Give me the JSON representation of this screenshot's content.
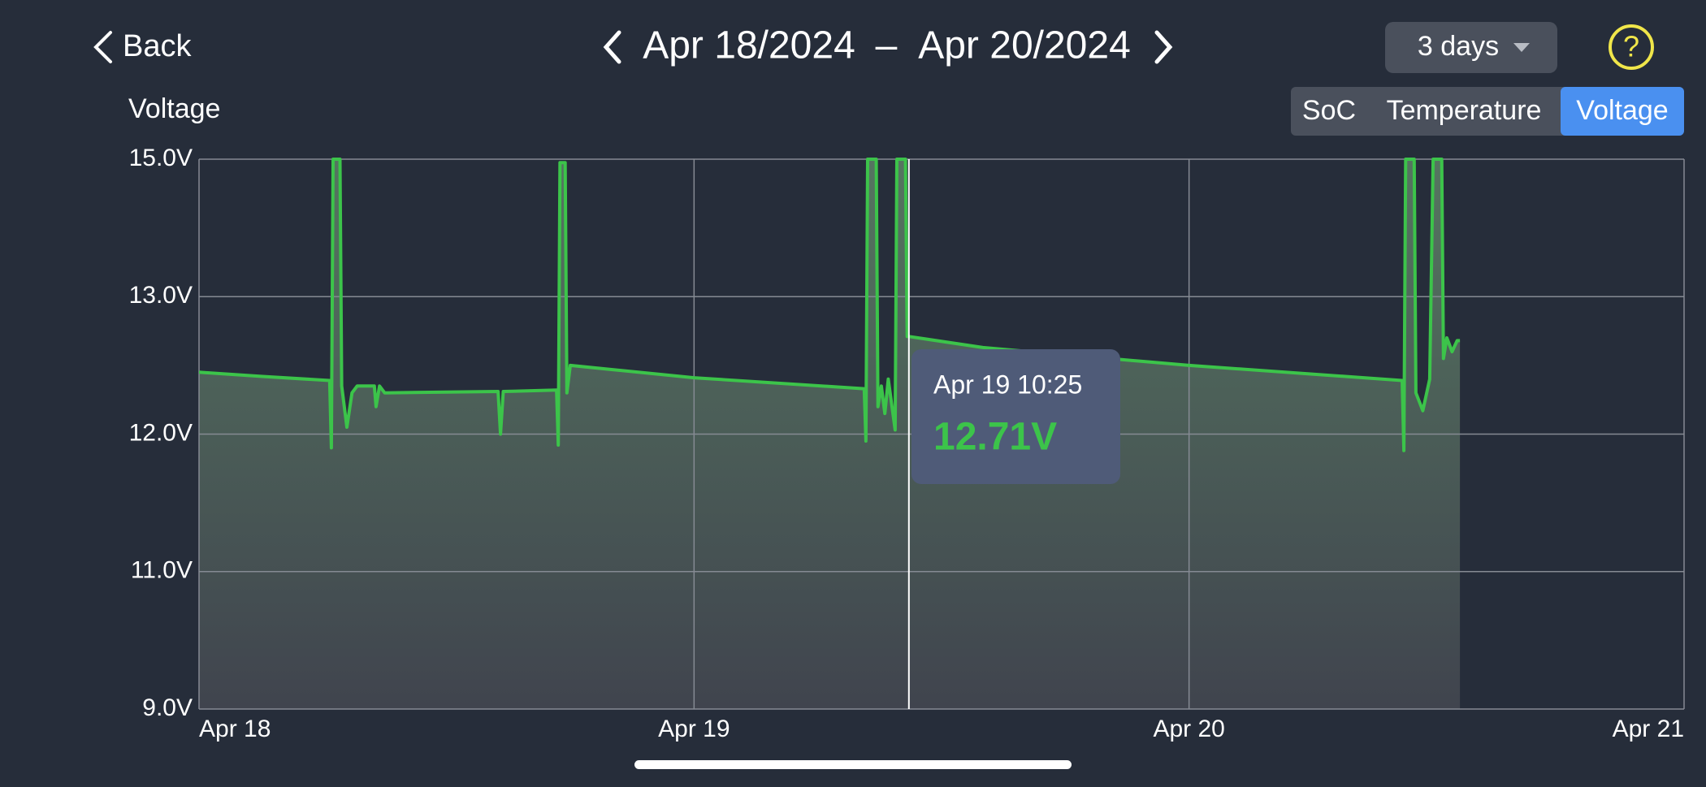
{
  "header": {
    "back": "Back",
    "date_start": "Apr 18/2024",
    "date_separator": "–",
    "date_end": "Apr 20/2024",
    "range": "3 days",
    "help": "?"
  },
  "tabs": {
    "items": [
      "SoC",
      "Temperature",
      "Voltage"
    ],
    "active": 2
  },
  "chart_data": {
    "type": "line",
    "y_label": "Voltage",
    "color": "#3cc44a",
    "area": true,
    "grid": true,
    "x": [
      "Apr 18 00:00",
      "Apr 18 03:00",
      "Apr 18 06:20",
      "Apr 18 06:25",
      "Apr 18 06:30",
      "Apr 18 06:50",
      "Apr 18 06:55",
      "Apr 18 07:10",
      "Apr 18 07:25",
      "Apr 18 07:40",
      "Apr 18 08:30",
      "Apr 18 08:35",
      "Apr 18 08:45",
      "Apr 18 09:00",
      "Apr 18 14:30",
      "Apr 18 14:37",
      "Apr 18 14:45",
      "Apr 18 17:20",
      "Apr 18 17:25",
      "Apr 18 17:30",
      "Apr 18 17:45",
      "Apr 18 17:50",
      "Apr 18 18:00",
      "Apr 18 20:00",
      "Apr 19 00:00",
      "Apr 19 08:15",
      "Apr 19 08:20",
      "Apr 19 08:25",
      "Apr 19 08:50",
      "Apr 19 08:55",
      "Apr 19 09:05",
      "Apr 19 09:15",
      "Apr 19 09:25",
      "Apr 19 09:45",
      "Apr 19 09:50",
      "Apr 19 10:15",
      "Apr 19 10:20",
      "Apr 19 10:25",
      "Apr 19 14:00",
      "Apr 20 00:00",
      "Apr 20 10:20",
      "Apr 20 10:25",
      "Apr 20 10:30",
      "Apr 20 10:55",
      "Apr 20 11:00",
      "Apr 20 11:20",
      "Apr 20 11:40",
      "Apr 20 11:50",
      "Apr 20 12:15",
      "Apr 20 12:20",
      "Apr 20 12:30",
      "Apr 20 12:45",
      "Apr 20 13:00",
      "Apr 20 13:08"
    ],
    "values": [
      12.45,
      12.42,
      12.39,
      11.9,
      15.0,
      15.0,
      12.35,
      12.05,
      12.3,
      12.35,
      12.35,
      12.2,
      12.35,
      12.3,
      12.31,
      12.0,
      12.31,
      12.32,
      11.92,
      14.95,
      14.95,
      12.3,
      12.5,
      12.47,
      12.41,
      12.33,
      11.95,
      15.0,
      15.0,
      12.2,
      12.35,
      12.15,
      12.4,
      12.03,
      15.0,
      15.0,
      12.71,
      12.71,
      12.63,
      12.5,
      12.39,
      11.88,
      15.0,
      15.0,
      12.3,
      12.17,
      12.4,
      15.0,
      15.0,
      12.55,
      12.7,
      12.6,
      12.68,
      12.68
    ],
    "xlim": [
      "Apr 18",
      "Apr 21"
    ],
    "xticks": [
      "Apr 18",
      "Apr 19",
      "Apr 20",
      "Apr 21"
    ],
    "ylim": [
      9,
      15
    ],
    "yticks": [
      {
        "value": 9,
        "label": "9.0V"
      },
      {
        "value": 11,
        "label": "11.0V"
      },
      {
        "value": 12,
        "label": "12.0V"
      },
      {
        "value": 13,
        "label": "13.0V"
      },
      {
        "value": 15,
        "label": "15.0V"
      }
    ],
    "tooltip": {
      "x": "Apr 19 10:25",
      "value": 12.71,
      "label": "12.71V"
    }
  }
}
